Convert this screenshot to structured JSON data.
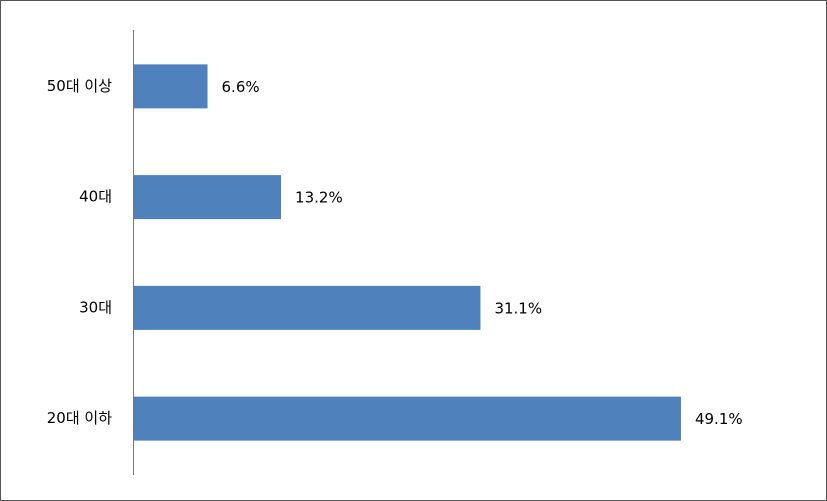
{
  "chart_data": {
    "type": "hbar",
    "categories": [
      "50대 이상",
      "40대",
      "30대",
      "20대 이하"
    ],
    "values": [
      6.6,
      13.2,
      31.1,
      49.1
    ],
    "value_labels": [
      "6.6%",
      "13.2%",
      "31.1%",
      "49.1%"
    ],
    "color": "#4f81bd"
  }
}
